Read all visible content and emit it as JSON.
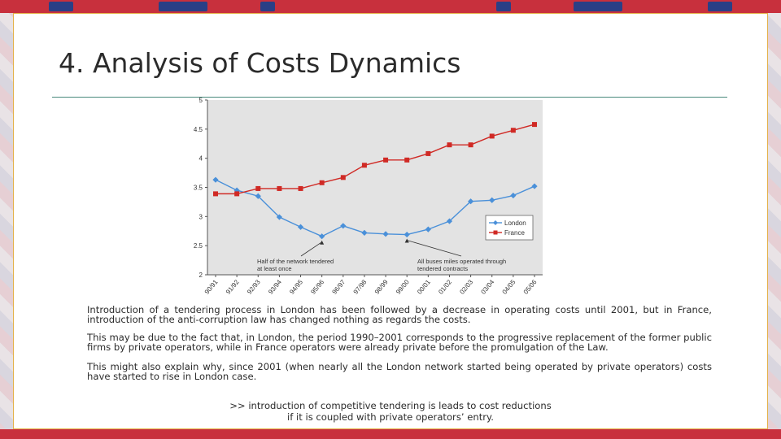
{
  "slide": {
    "title": "4. Analysis of Costs Dynamics",
    "paragraphs": [
      "Introduction of a tendering process in London has been followed by a decrease in operating costs until 2001, but in France, introduction of the anti-corruption law has changed nothing as regards the costs.",
      "This may be due to the fact that, in London, the period 1990–2001 corresponds to the progressive replacement of the former public firms by private operators, while in France operators were already private before the promulgation of the Law.",
      "This might also explain why, since 2001 (when nearly all the London network started being operated by private operators) costs have started to rise in London case."
    ],
    "conclusion_line1": ">> introduction of competitive tendering is leads to cost reductions",
    "conclusion_line2": "if it is coupled with private operators’ entry."
  },
  "colors": {
    "london": "#4a90d9",
    "france": "#d02a25",
    "plot_bg": "#e3e3e3",
    "accent_border": "#e4b24a"
  },
  "chart_data": {
    "type": "line",
    "categories": [
      "90/91",
      "91/92",
      "92/93",
      "93/94",
      "94/95",
      "95/96",
      "96/97",
      "97/98",
      "98/99",
      "99/00",
      "00/01",
      "01/02",
      "02/03",
      "03/04",
      "04/05",
      "05/06"
    ],
    "series": [
      {
        "name": "London",
        "marker": "diamond",
        "values": [
          3.63,
          3.45,
          3.35,
          2.99,
          2.82,
          2.66,
          2.84,
          2.72,
          2.7,
          2.69,
          2.78,
          2.92,
          3.26,
          3.28,
          3.36,
          3.52
        ]
      },
      {
        "name": "France",
        "marker": "square",
        "values": [
          3.39,
          3.39,
          3.48,
          3.48,
          3.48,
          3.58,
          3.67,
          3.88,
          3.97,
          3.97,
          4.08,
          4.23,
          4.23,
          4.38,
          4.48,
          4.58
        ]
      }
    ],
    "ylim": [
      2,
      5
    ],
    "yticks": [
      "2",
      "2.5",
      "3",
      "3.5",
      "4",
      "4.5",
      "5"
    ],
    "legend_position": "right",
    "annotations": [
      {
        "text_line1": "Half of the network tendered",
        "text_line2": "at least once",
        "points_to_index": 5
      },
      {
        "text_line1": "All buses miles operated through",
        "text_line2": "tendered contracts",
        "points_to_index": 9
      }
    ],
    "grid": false
  }
}
